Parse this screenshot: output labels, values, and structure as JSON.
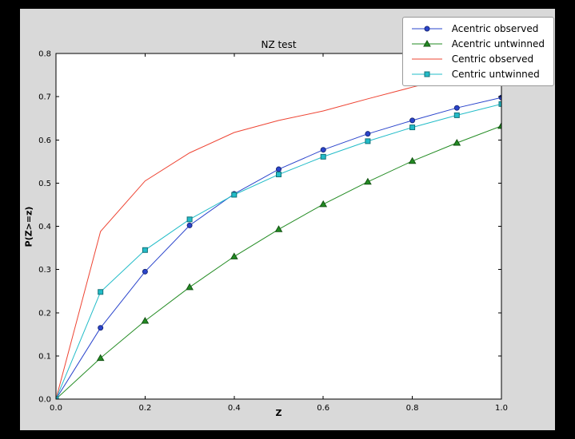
{
  "window": {
    "background": "#000000"
  },
  "chart_data": {
    "type": "line",
    "title": "NZ test",
    "xlabel": "Z",
    "ylabel": "P(Z>=z)",
    "xlim": [
      0.0,
      1.0
    ],
    "ylim": [
      0.0,
      0.8
    ],
    "xticks": [
      0.0,
      0.2,
      0.4,
      0.6,
      0.8,
      1.0
    ],
    "yticks": [
      0.0,
      0.1,
      0.2,
      0.3,
      0.4,
      0.5,
      0.6,
      0.7,
      0.8
    ],
    "grid": false,
    "legend_position": "upper right",
    "background": "#d9d9d9",
    "plot_background": "#ffffff",
    "axis_color": "#000000",
    "x": [
      0.0,
      0.1,
      0.2,
      0.3,
      0.4,
      0.5,
      0.6,
      0.7,
      0.8,
      0.9,
      1.0
    ],
    "series": [
      {
        "name": "Acentric observed",
        "color": "#2a44cc",
        "marker": "circle",
        "values": [
          0.0,
          0.165,
          0.295,
          0.402,
          0.475,
          0.532,
          0.577,
          0.614,
          0.645,
          0.674,
          0.698
        ]
      },
      {
        "name": "Acentric untwinned",
        "color": "#228b22",
        "marker": "triangle",
        "values": [
          0.0,
          0.095,
          0.181,
          0.259,
          0.33,
          0.393,
          0.451,
          0.503,
          0.551,
          0.593,
          0.632
        ]
      },
      {
        "name": "Centric observed",
        "color": "#ee4433",
        "marker": "none",
        "values": [
          0.0,
          0.388,
          0.505,
          0.57,
          0.617,
          0.645,
          0.667,
          0.695,
          0.722,
          0.747,
          0.764
        ]
      },
      {
        "name": "Centric untwinned",
        "color": "#22bcc8",
        "marker": "square",
        "values": [
          0.0,
          0.248,
          0.345,
          0.416,
          0.473,
          0.52,
          0.561,
          0.597,
          0.629,
          0.657,
          0.683
        ]
      }
    ]
  }
}
